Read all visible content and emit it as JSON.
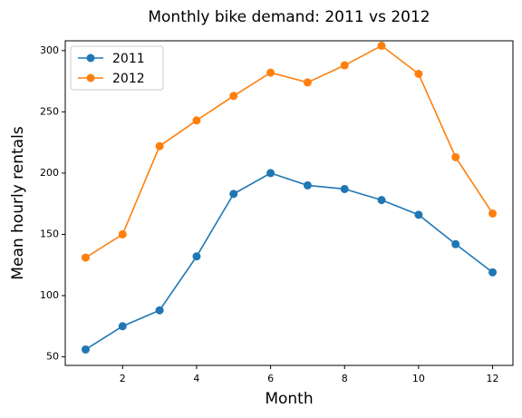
{
  "chart_data": {
    "type": "line",
    "title": "Monthly bike demand: 2011 vs 2012",
    "x_label": "Month",
    "y_label": "Mean hourly rentals",
    "x": [
      1,
      2,
      3,
      4,
      5,
      6,
      7,
      8,
      9,
      10,
      11,
      12
    ],
    "series": [
      {
        "name": "2011",
        "color": "#1f77b4",
        "values": [
          56,
          75,
          88,
          132,
          183,
          200,
          190,
          187,
          178,
          166,
          142,
          119
        ]
      },
      {
        "name": "2012",
        "color": "#ff7f0e",
        "values": [
          131,
          150,
          222,
          243,
          263,
          282,
          274,
          288,
          304,
          281,
          213,
          167
        ]
      }
    ],
    "xlim": [
      0.45,
      12.55
    ],
    "xticks": [
      2,
      4,
      6,
      8,
      10,
      12
    ],
    "ylim": [
      43,
      308
    ],
    "yticks": [
      50,
      100,
      150,
      200,
      250,
      300
    ],
    "grid": false,
    "legend": "upper-left",
    "markers": true
  }
}
